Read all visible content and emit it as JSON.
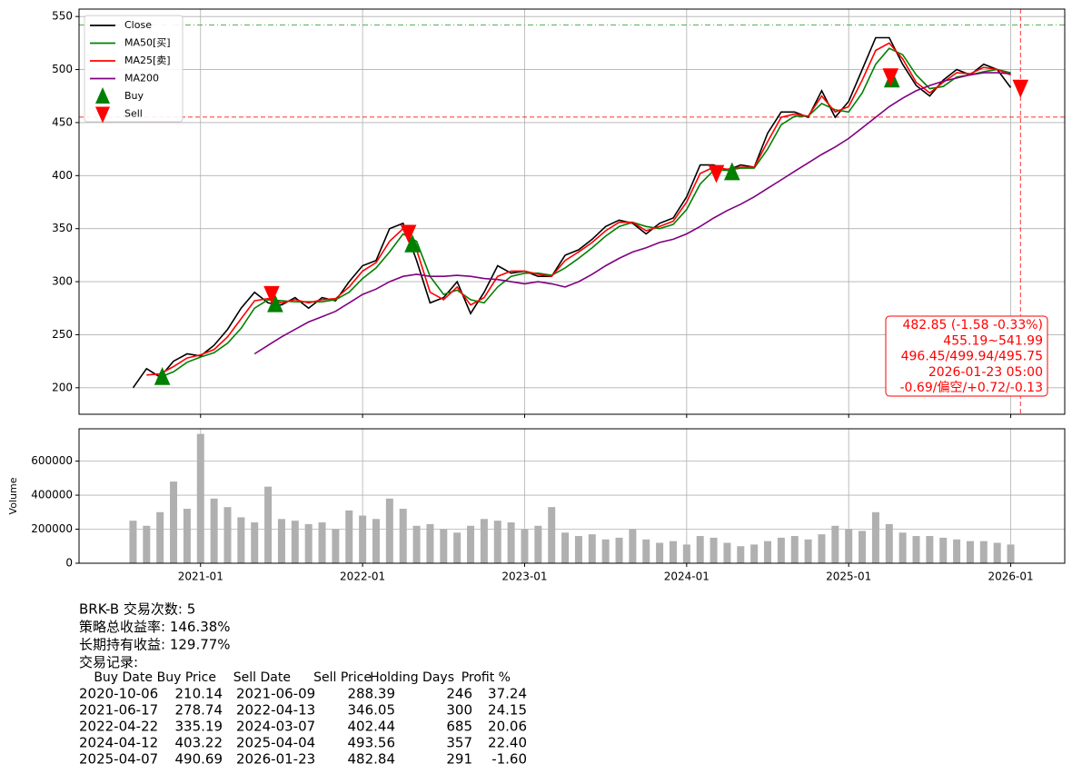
{
  "chart_data": [
    {
      "type": "line",
      "x": [
        "2020-08",
        "2020-09",
        "2020-10",
        "2020-11",
        "2020-12",
        "2021-01",
        "2021-02",
        "2021-03",
        "2021-04",
        "2021-05",
        "2021-06",
        "2021-07",
        "2021-08",
        "2021-09",
        "2021-10",
        "2021-11",
        "2021-12",
        "2022-01",
        "2022-02",
        "2022-03",
        "2022-04",
        "2022-05",
        "2022-06",
        "2022-07",
        "2022-08",
        "2022-09",
        "2022-10",
        "2022-11",
        "2022-12",
        "2023-01",
        "2023-02",
        "2023-03",
        "2023-04",
        "2023-05",
        "2023-06",
        "2023-07",
        "2023-08",
        "2023-09",
        "2023-10",
        "2023-11",
        "2023-12",
        "2024-01",
        "2024-02",
        "2024-03",
        "2024-04",
        "2024-05",
        "2024-06",
        "2024-07",
        "2024-08",
        "2024-09",
        "2024-10",
        "2024-11",
        "2024-12",
        "2025-01",
        "2025-02",
        "2025-03",
        "2025-04",
        "2025-05",
        "2025-06",
        "2025-07",
        "2025-08",
        "2025-09",
        "2025-10",
        "2025-11",
        "2025-12",
        "2026-01"
      ],
      "xlim": [
        "2020-04",
        "2026-05"
      ],
      "ylim": [
        175,
        557
      ],
      "yticks": [
        200,
        250,
        300,
        350,
        400,
        450,
        500,
        550
      ],
      "grid": true,
      "legend": "upper left",
      "series": [
        {
          "name": "Close",
          "color": "#000000",
          "values": [
            200,
            218,
            210,
            225,
            232,
            230,
            240,
            255,
            275,
            290,
            280,
            278,
            285,
            275,
            285,
            282,
            300,
            315,
            320,
            350,
            355,
            320,
            280,
            285,
            300,
            270,
            290,
            315,
            308,
            310,
            305,
            305,
            325,
            330,
            340,
            352,
            358,
            355,
            345,
            355,
            360,
            380,
            410,
            410,
            405,
            410,
            408,
            440,
            460,
            460,
            455,
            480,
            455,
            470,
            500,
            530,
            530,
            505,
            485,
            475,
            490,
            500,
            495,
            505,
            500,
            483
          ]
        },
        {
          "name": "MA50[买]",
          "color": "#008000",
          "values": [
            null,
            null,
            210,
            215,
            224,
            229,
            233,
            242,
            256,
            275,
            283,
            282,
            281,
            281,
            281,
            283,
            290,
            303,
            313,
            328,
            345,
            338,
            305,
            288,
            292,
            283,
            280,
            295,
            305,
            308,
            308,
            306,
            313,
            322,
            332,
            343,
            352,
            356,
            352,
            350,
            354,
            368,
            392,
            405,
            405,
            407,
            407,
            425,
            448,
            456,
            456,
            468,
            462,
            460,
            478,
            505,
            520,
            514,
            495,
            482,
            484,
            493,
            495,
            498,
            500,
            497
          ]
        },
        {
          "name": "MA25[卖]",
          "color": "#ff0000",
          "values": [
            null,
            212,
            213,
            220,
            228,
            231,
            236,
            248,
            265,
            282,
            284,
            280,
            283,
            280,
            283,
            284,
            295,
            310,
            318,
            338,
            350,
            330,
            290,
            283,
            295,
            278,
            285,
            305,
            310,
            310,
            307,
            305,
            320,
            328,
            337,
            348,
            356,
            356,
            348,
            352,
            357,
            375,
            402,
            408,
            406,
            408,
            408,
            432,
            455,
            458,
            456,
            475,
            460,
            465,
            490,
            518,
            525,
            510,
            488,
            478,
            488,
            497,
            496,
            502,
            500,
            495
          ]
        },
        {
          "name": "MA200",
          "color": "#800080",
          "values": [
            null,
            null,
            null,
            null,
            null,
            null,
            null,
            null,
            null,
            232,
            240,
            248,
            255,
            262,
            267,
            272,
            280,
            288,
            293,
            300,
            305,
            307,
            305,
            305,
            306,
            305,
            303,
            302,
            300,
            298,
            300,
            298,
            295,
            300,
            307,
            315,
            322,
            328,
            332,
            337,
            340,
            345,
            352,
            360,
            367,
            373,
            380,
            388,
            396,
            404,
            412,
            420,
            427,
            435,
            445,
            455,
            465,
            473,
            480,
            485,
            489,
            492,
            495,
            497,
            497,
            496
          ]
        }
      ],
      "markers": [
        {
          "name": "Buy",
          "color": "#008000",
          "shape": "triangle-up",
          "x": [
            "2020-10-06",
            "2021-06-17",
            "2022-04-22",
            "2024-04-12",
            "2025-04-07"
          ],
          "values": [
            210.14,
            278.74,
            335.19,
            403.22,
            490.69
          ]
        },
        {
          "name": "Sell",
          "color": "#ff0000",
          "shape": "triangle-down",
          "x": [
            "2021-06-09",
            "2022-04-13",
            "2024-03-07",
            "2025-04-04",
            "2026-01-23"
          ],
          "values": [
            288.39,
            346.05,
            402.44,
            493.56,
            482.84
          ]
        }
      ],
      "hlines": [
        {
          "value": 541.99,
          "color": "#2ca02c",
          "style": "dash-dot"
        },
        {
          "value": 455.19,
          "color": "#ff0000",
          "style": "dashed"
        }
      ],
      "vline": {
        "x": "2026-01-23",
        "color": "#ff0000"
      },
      "annotation": [
        "482.85 (-1.58 -0.33%)",
        "455.19~541.99",
        "496.45/499.94/495.75",
        "2026-01-23 05:00",
        "-0.69/偏空/+0.72/-0.13"
      ]
    },
    {
      "type": "bar",
      "ylabel": "Volume",
      "color": "#b0b0b0",
      "values": [
        250000,
        220000,
        300000,
        480000,
        320000,
        760000,
        380000,
        330000,
        270000,
        240000,
        450000,
        260000,
        250000,
        230000,
        240000,
        200000,
        310000,
        280000,
        260000,
        380000,
        320000,
        220000,
        230000,
        200000,
        180000,
        220000,
        260000,
        250000,
        240000,
        200000,
        220000,
        330000,
        180000,
        160000,
        170000,
        140000,
        150000,
        200000,
        140000,
        120000,
        130000,
        110000,
        160000,
        150000,
        120000,
        100000,
        110000,
        130000,
        150000,
        160000,
        140000,
        170000,
        220000,
        200000,
        190000,
        300000,
        230000,
        180000,
        160000,
        160000,
        150000,
        140000,
        130000,
        130000,
        120000,
        110000
      ],
      "ylim": [
        0,
        790000
      ],
      "yticks": [
        0,
        200000,
        400000,
        600000
      ],
      "xticks": [
        "2021-01",
        "2022-01",
        "2023-01",
        "2024-01",
        "2025-01",
        "2026-01"
      ],
      "grid": true
    }
  ],
  "summary": {
    "trades": "BRK-B 交易次数: 5",
    "strategy_return": "策略总收益率: 146.38%",
    "hold_return": "长期持有收益: 129.77%",
    "records_label": "交易记录:",
    "table": {
      "columns": [
        "Buy Date",
        "Buy Price",
        "Sell Date",
        "Sell Price",
        "Holding Days",
        "Profit %"
      ],
      "rows": [
        [
          "2020-10-06",
          "210.14",
          "2021-06-09",
          "288.39",
          "246",
          "37.24"
        ],
        [
          "2021-06-17",
          "278.74",
          "2022-04-13",
          "346.05",
          "300",
          "24.15"
        ],
        [
          "2022-04-22",
          "335.19",
          "2024-03-07",
          "402.44",
          "685",
          "20.06"
        ],
        [
          "2024-04-12",
          "403.22",
          "2025-04-04",
          "493.56",
          "357",
          "22.40"
        ],
        [
          "2025-04-07",
          "490.69",
          "2026-01-23",
          "482.84",
          "291",
          "-1.60"
        ]
      ]
    }
  }
}
